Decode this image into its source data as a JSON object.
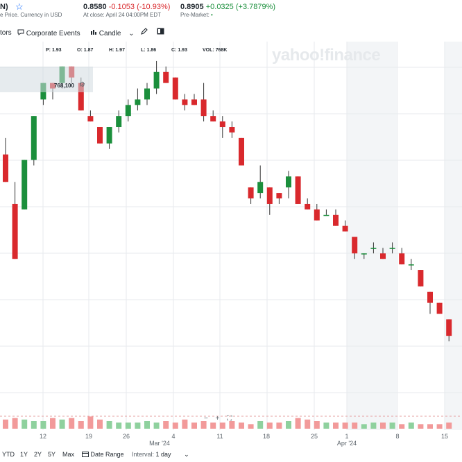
{
  "header": {
    "title_fragment": "N)",
    "subtitle_fragment": "e Price. Currency in USD",
    "close_price": "0.8580",
    "close_change": "-0.1053",
    "close_change_pct": "(-10.93%)",
    "close_time": "At close: April 24 04:00PM EDT",
    "pre_price": "0.8905",
    "pre_change": "+0.0325",
    "pre_change_pct": "(+3.7879%)",
    "pre_label": "Pre-Market:",
    "colors": {
      "negative": "#d9292d",
      "positive": "#1b8f3c",
      "accent": "#0f69ff"
    }
  },
  "toolbar": {
    "indicators_fragment": "tors",
    "corporate_events": "Corporate Events",
    "chart_type": "Candle"
  },
  "legend": {
    "open_label": "P:",
    "open": "1.93",
    "high_label": "O:",
    "high": "1.87",
    "h_label": "H:",
    "h": "1.97",
    "l_label": "L:",
    "l": "1.86",
    "c_label": "C:",
    "c": "1.93",
    "vol_label": "VOL:",
    "vol": "768K"
  },
  "watermark": "yahoo!finance",
  "volume_value": "768,100",
  "zoom_controls": [
    "−",
    "+",
    "⛶"
  ],
  "x_axis": {
    "labels": [
      "12",
      "19",
      "26",
      "4",
      "11",
      "18",
      "25",
      "1",
      "8",
      "15"
    ],
    "month_labels": [
      "Mar '24",
      "Apr '24"
    ]
  },
  "range_bar": {
    "ranges": [
      "YTD",
      "1Y",
      "2Y",
      "5Y",
      "Max"
    ],
    "date_range": "Date Range",
    "interval_label": "Interval:",
    "interval_value": "1 day"
  },
  "chart_data": {
    "type": "candlestick",
    "candles": [
      {
        "o": 2.03,
        "h": 2.06,
        "l": 1.98,
        "c": 1.98
      },
      {
        "o": 1.94,
        "h": 1.98,
        "l": 1.84,
        "c": 1.84
      },
      {
        "o": 1.93,
        "h": 2.02,
        "l": 1.93,
        "c": 2.02
      },
      {
        "o": 2.02,
        "h": 2.1,
        "l": 2.01,
        "c": 2.1
      },
      {
        "o": 2.13,
        "h": 2.16,
        "l": 2.12,
        "c": 2.16
      },
      {
        "o": 2.16,
        "h": 2.16,
        "l": 2.13,
        "c": 2.15
      },
      {
        "o": 2.16,
        "h": 2.19,
        "l": 2.15,
        "c": 2.19
      },
      {
        "o": 2.19,
        "h": 2.19,
        "l": 2.16,
        "c": 2.17
      },
      {
        "o": 2.16,
        "h": 2.17,
        "l": 2.11,
        "c": 2.11
      },
      {
        "o": 2.1,
        "h": 2.11,
        "l": 2.09,
        "c": 2.09
      },
      {
        "o": 2.08,
        "h": 2.08,
        "l": 2.05,
        "c": 2.05
      },
      {
        "o": 2.05,
        "h": 2.08,
        "l": 2.04,
        "c": 2.08
      },
      {
        "o": 2.08,
        "h": 2.11,
        "l": 2.07,
        "c": 2.1
      },
      {
        "o": 2.1,
        "h": 2.13,
        "l": 2.09,
        "c": 2.12
      },
      {
        "o": 2.12,
        "h": 2.15,
        "l": 2.11,
        "c": 2.13
      },
      {
        "o": 2.13,
        "h": 2.16,
        "l": 2.12,
        "c": 2.15
      },
      {
        "o": 2.15,
        "h": 2.2,
        "l": 2.14,
        "c": 2.18
      },
      {
        "o": 2.18,
        "h": 2.19,
        "l": 2.16,
        "c": 2.16
      },
      {
        "o": 2.17,
        "h": 2.17,
        "l": 2.13,
        "c": 2.13
      },
      {
        "o": 2.13,
        "h": 2.14,
        "l": 2.11,
        "c": 2.12
      },
      {
        "o": 2.13,
        "h": 2.14,
        "l": 2.12,
        "c": 2.12
      },
      {
        "o": 2.13,
        "h": 2.16,
        "l": 2.09,
        "c": 2.1
      },
      {
        "o": 2.1,
        "h": 2.11,
        "l": 2.09,
        "c": 2.09
      },
      {
        "o": 2.09,
        "h": 2.1,
        "l": 2.06,
        "c": 2.08
      },
      {
        "o": 2.08,
        "h": 2.09,
        "l": 2.06,
        "c": 2.07
      },
      {
        "o": 2.06,
        "h": 2.06,
        "l": 2.01,
        "c": 2.01
      },
      {
        "o": 1.97,
        "h": 1.97,
        "l": 1.94,
        "c": 1.95
      },
      {
        "o": 1.96,
        "h": 2.01,
        "l": 1.95,
        "c": 1.98
      },
      {
        "o": 1.97,
        "h": 1.97,
        "l": 1.92,
        "c": 1.94
      },
      {
        "o": 1.96,
        "h": 1.96,
        "l": 1.94,
        "c": 1.95
      },
      {
        "o": 1.97,
        "h": 2.0,
        "l": 1.95,
        "c": 1.99
      },
      {
        "o": 1.99,
        "h": 1.99,
        "l": 1.94,
        "c": 1.94
      },
      {
        "o": 1.94,
        "h": 1.95,
        "l": 1.93,
        "c": 1.93
      },
      {
        "o": 1.93,
        "h": 1.94,
        "l": 1.91,
        "c": 1.91
      },
      {
        "o": 1.92,
        "h": 1.93,
        "l": 1.92,
        "c": 1.92
      },
      {
        "o": 1.92,
        "h": 1.93,
        "l": 1.9,
        "c": 1.9
      },
      {
        "o": 1.9,
        "h": 1.91,
        "l": 1.89,
        "c": 1.89
      },
      {
        "o": 1.88,
        "h": 1.88,
        "l": 1.84,
        "c": 1.85
      },
      {
        "o": 1.85,
        "h": 1.85,
        "l": 1.84,
        "c": 1.85
      },
      {
        "o": 1.86,
        "h": 1.87,
        "l": 1.85,
        "c": 1.86
      },
      {
        "o": 1.85,
        "h": 1.86,
        "l": 1.84,
        "c": 1.84
      },
      {
        "o": 1.86,
        "h": 1.87,
        "l": 1.85,
        "c": 1.86
      },
      {
        "o": 1.85,
        "h": 1.86,
        "l": 1.83,
        "c": 1.83
      },
      {
        "o": 1.83,
        "h": 1.84,
        "l": 1.82,
        "c": 1.83
      },
      {
        "o": 1.82,
        "h": 1.82,
        "l": 1.79,
        "c": 1.79
      },
      {
        "o": 1.78,
        "h": 1.78,
        "l": 1.74,
        "c": 1.76
      },
      {
        "o": 1.76,
        "h": 1.76,
        "l": 1.74,
        "c": 1.74
      },
      {
        "o": 1.73,
        "h": 1.73,
        "l": 1.69,
        "c": 1.7
      }
    ],
    "volume": [
      6,
      7,
      6,
      5,
      5,
      7,
      6,
      7,
      5,
      8,
      6,
      5,
      4,
      4,
      4,
      5,
      4,
      5,
      4,
      6,
      4,
      5,
      4,
      4,
      5,
      4,
      3,
      5,
      4,
      4,
      5,
      7,
      6,
      5,
      4,
      4,
      4,
      4,
      3,
      4,
      4,
      4,
      3,
      4,
      3,
      3,
      3,
      4
    ]
  }
}
